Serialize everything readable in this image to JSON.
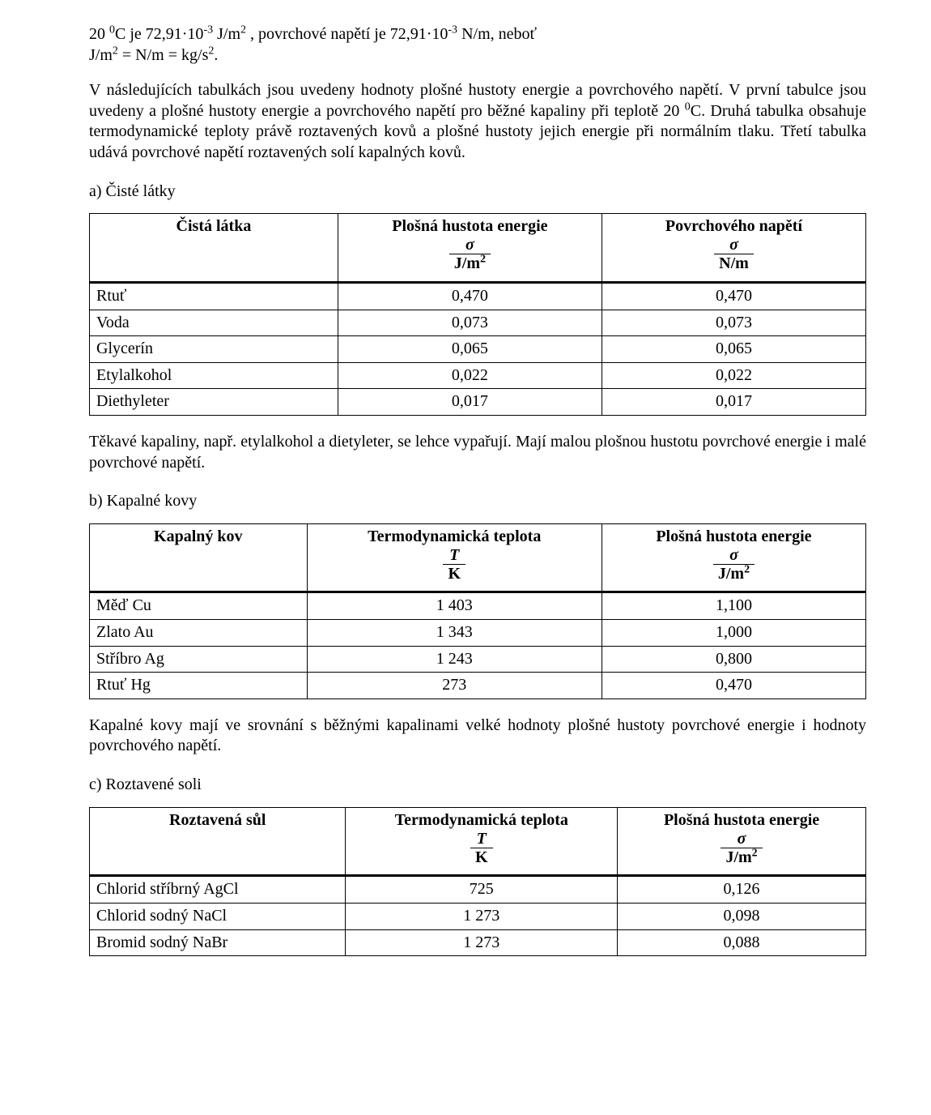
{
  "intro": {
    "line1_a": "20 ",
    "line1_sup0a": "0",
    "line1_b": "C   je   72,91·10",
    "line1_sup_neg3a": "-3",
    "line1_c": " J/m",
    "line1_sup2a": "2",
    "line1_d": " ,      povrchové    napětí    je    72,91·10",
    "line1_sup_neg3b": "-3",
    "line1_e": " N/m,      neboť ",
    "line2": "J/m",
    "line2_sup2": "2",
    "line2_b": "  =  N/m = kg/s",
    "line2_sup2b": "2",
    "line2_c": "."
  },
  "para2": {
    "a": "V následujících tabulkách jsou uvedeny hodnoty plošné hustoty energie a povrchového napětí. V první tabulce jsou uvedeny a plošné hustoty energie a povrchového napětí pro běžné kapaliny při teplotě 20 ",
    "sup0": "0",
    "b": "C. Druhá tabulka obsahuje termodynamické teploty právě roztavených kovů a plošné hustoty jejich energie při normálním tlaku. Třetí tabulka udává povrchové napětí roztavených solí kapalných kovů."
  },
  "section_a": "a) Čisté látky",
  "tableA": {
    "columns": {
      "c1": "Čistá látka",
      "c2": "Plošná hustota energie",
      "c3": "Povrchového napětí",
      "frac2_num": "σ",
      "frac2_den": "J/m",
      "frac2_den_sup": "2",
      "frac3_num": "σ",
      "frac3_den": "N/m"
    },
    "rows": [
      {
        "label": "Rtuť",
        "v1": "0,470",
        "v2": "0,470"
      },
      {
        "label": "Voda",
        "v1": "0,073",
        "v2": "0,073"
      },
      {
        "label": "Glycerín",
        "v1": "0,065",
        "v2": "0,065"
      },
      {
        "label": "Etylalkohol",
        "v1": "0,022",
        "v2": "0,022"
      },
      {
        "label": "Diethyleter",
        "v1": "0,017",
        "v2": "0,017"
      }
    ]
  },
  "para_after_a": "Těkavé kapaliny, např. etylalkohol a dietyleter, se lehce vypařují. Mají malou plošnou hustotu povrchové energie i malé povrchové napětí.",
  "section_b": "b) Kapalné kovy",
  "tableB": {
    "columns": {
      "c1": "Kapalný kov",
      "c2": "Termodynamická teplota",
      "c3": "Plošná hustota energie",
      "frac2_num": "T",
      "frac2_den": "K",
      "frac3_num": "σ",
      "frac3_den": "J/m",
      "frac3_den_sup": "2"
    },
    "rows": [
      {
        "label": "Měď Cu",
        "v1": "1 403",
        "v2": "1,100"
      },
      {
        "label": "Zlato Au",
        "v1": "1 343",
        "v2": "1,000"
      },
      {
        "label": "Stříbro Ag",
        "v1": "1 243",
        "v2": "0,800"
      },
      {
        "label": "Rtuť Hg",
        "v1": "273",
        "v2": "0,470"
      }
    ]
  },
  "para_after_b": "Kapalné kovy mají ve srovnání s běžnými kapalinami velké hodnoty plošné hustoty povrchové energie i hodnoty povrchového napětí.",
  "section_c": "c) Roztavené soli",
  "tableC": {
    "columns": {
      "c1": "Roztavená sůl",
      "c2": "Termodynamická teplota",
      "c3": "Plošná hustota energie",
      "frac2_num": "T",
      "frac2_den": "K",
      "frac3_num": "σ",
      "frac3_den": "J/m",
      "frac3_den_sup": "2"
    },
    "rows": [
      {
        "label": "Chlorid stříbrný AgCl",
        "v1": "725",
        "v2": "0,126"
      },
      {
        "label": "Chlorid sodný NaCl",
        "v1": "1 273",
        "v2": "0,098"
      },
      {
        "label": "Bromid sodný NaBr",
        "v1": "1 273",
        "v2": "0,088"
      }
    ]
  },
  "style": {
    "page_bg": "#ffffff",
    "text_color": "#000000",
    "border_color": "#000000",
    "font_family": "Times New Roman",
    "body_fontsize_pt": 15,
    "colA_widths": [
      "32%",
      "34%",
      "34%"
    ],
    "colB_widths": [
      "28%",
      "38%",
      "34%"
    ],
    "colC_widths": [
      "33%",
      "35%",
      "32%"
    ]
  }
}
